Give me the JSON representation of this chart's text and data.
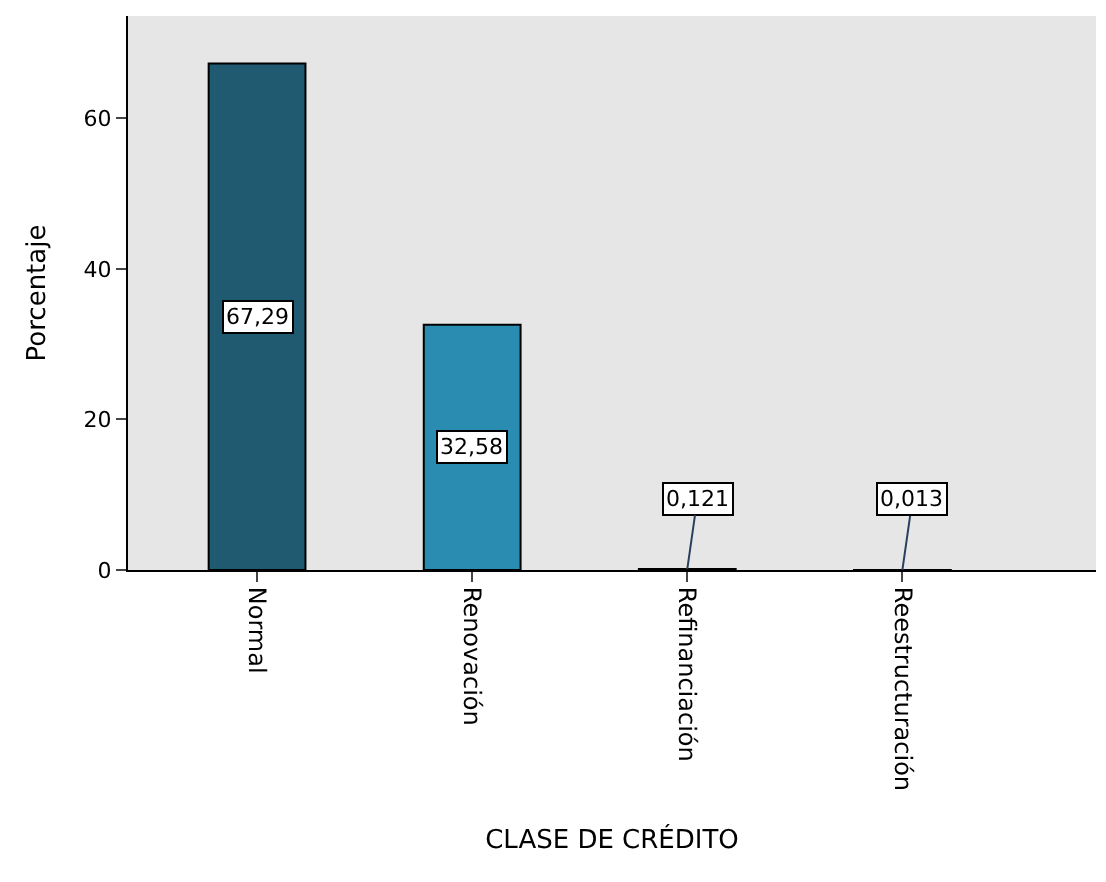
{
  "chart_data": {
    "type": "bar",
    "xlabel": "CLASE DE CRÉDITO",
    "ylabel": "Porcentaje",
    "categories": [
      "Normal",
      "Renovación",
      "Refinanciación",
      "Reestructuración"
    ],
    "values": [
      67.29,
      32.58,
      0.121,
      0.013
    ],
    "value_labels": [
      "67,29",
      "32,58",
      "0,121",
      "0,013"
    ],
    "colors": [
      "#1f5a70",
      "#2a8cb0",
      "#1f5a70",
      "#1f5a70"
    ],
    "ylim": [
      0,
      73.6
    ],
    "yticks": [
      0,
      20,
      40,
      60
    ],
    "grid": false
  }
}
